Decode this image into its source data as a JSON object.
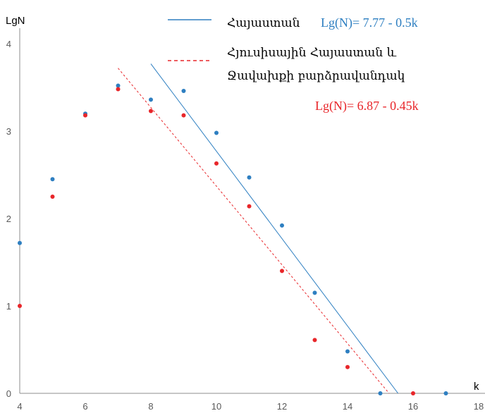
{
  "chart_data": {
    "type": "scatter",
    "xlabel": "k",
    "ylabel": "LgN",
    "xlim": [
      4,
      18
    ],
    "ylim": [
      0,
      4
    ],
    "x_ticks": [
      4,
      6,
      8,
      10,
      12,
      14,
      16,
      18
    ],
    "y_ticks": [
      0,
      1,
      2,
      3,
      4
    ],
    "grid": false,
    "legend_position": "top-right",
    "series": [
      {
        "name": "Հայաստան",
        "color": "#2e7fc1",
        "points": [
          [
            4,
            1.72
          ],
          [
            5,
            2.45
          ],
          [
            6,
            3.2
          ],
          [
            7,
            3.52
          ],
          [
            8,
            3.36
          ],
          [
            9,
            3.46
          ],
          [
            10,
            2.98
          ],
          [
            11,
            2.47
          ],
          [
            12,
            1.92
          ],
          [
            13,
            1.15
          ],
          [
            14,
            0.48
          ],
          [
            15,
            0.0
          ],
          [
            17,
            0.0
          ]
        ],
        "fit": {
          "equation": "Lg(N)= 7.77 - 0.5k",
          "intercept": 7.77,
          "slope": -0.5,
          "x_range": [
            8,
            15.54
          ],
          "style": "solid"
        }
      },
      {
        "name": "Հյուսիսային Հայաստան և Ջավախքի բարձրավանդակ",
        "name_lines": [
          "Հյուսիսային Հայաստան և",
          "Ջավախքի բարձրավանդակ"
        ],
        "color": "#e8262a",
        "points": [
          [
            4,
            1.0
          ],
          [
            5,
            2.25
          ],
          [
            6,
            3.18
          ],
          [
            7,
            3.48
          ],
          [
            8,
            3.23
          ],
          [
            9,
            3.18
          ],
          [
            10,
            2.63
          ],
          [
            11,
            2.14
          ],
          [
            12,
            1.4
          ],
          [
            13,
            0.61
          ],
          [
            14,
            0.3
          ],
          [
            16,
            0.0
          ]
        ],
        "fit": {
          "equation": "Lg(N)= 6.87 - 0.45k",
          "intercept": 6.87,
          "slope": -0.45,
          "x_range": [
            7,
            15.27
          ],
          "style": "dashed"
        }
      }
    ]
  }
}
